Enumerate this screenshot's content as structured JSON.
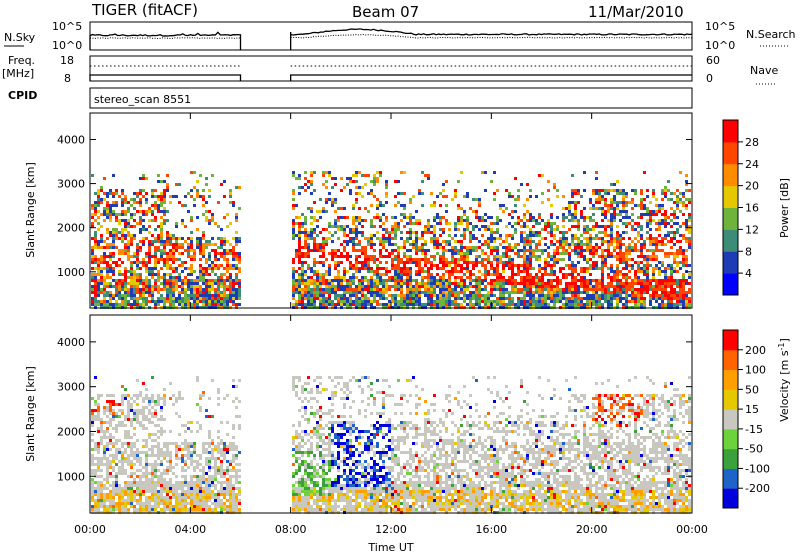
{
  "header": {
    "radar": "TIGER (fitACF)",
    "beam": "Beam 07",
    "date": "11/Mar/2010"
  },
  "panels": {
    "nsky_label": "N.Sky",
    "nsearch_label": "N.Search",
    "nsky_ticks": [
      "10^5",
      "10^0"
    ],
    "nsearch_ticks": [
      "10^5",
      "10^0"
    ],
    "freq_label": "Freq.",
    "freq_unit": "[MHz]",
    "freq_ticks": [
      "18",
      "8"
    ],
    "nave_label": "Nave",
    "nave_ticks": [
      "60",
      "0"
    ],
    "cpid_label": "CPID",
    "cpid_value": "stereo_scan 8551"
  },
  "chart_data": [
    {
      "type": "heatmap",
      "title": "",
      "ylabel": "Slant Range [km]",
      "xlabel": "",
      "y_ticks": [
        "4000",
        "3000",
        "2000",
        "1000"
      ],
      "ylim": [
        180,
        4600
      ],
      "colorbar_label": "Power [dB]",
      "colorbar_ticks": [
        "28",
        "24",
        "20",
        "16",
        "12",
        "8",
        "4"
      ],
      "colorbar_colors": [
        "#0000ff",
        "#1e3cb4",
        "#3c8c78",
        "#6eb43c",
        "#e6c800",
        "#ff8c00",
        "#ff4600",
        "#ff0000"
      ],
      "data_gap_hours": [
        6.0,
        8.0
      ]
    },
    {
      "type": "heatmap",
      "title": "",
      "ylabel": "Slant Range [km]",
      "xlabel": "Time UT",
      "x_ticks": [
        "00:00",
        "04:00",
        "08:00",
        "12:00",
        "16:00",
        "20:00",
        "00:00"
      ],
      "y_ticks": [
        "4000",
        "3000",
        "2000",
        "1000"
      ],
      "ylim": [
        180,
        4600
      ],
      "colorbar_label": "Velocity",
      "colorbar_unit": "[m s",
      "colorbar_unit_exp": "-1",
      "colorbar_unit_close": "]",
      "colorbar_ticks": [
        "200",
        "100",
        "50",
        "15",
        "-15",
        "-50",
        "-100",
        "-200"
      ],
      "colorbar_colors": [
        "#ff0000",
        "#ff6400",
        "#ffa000",
        "#e6c800",
        "#c8c8c0",
        "#6ed23c",
        "#3ca03c",
        "#1e64c8",
        "#0000dc"
      ],
      "data_gap_hours": [
        6.0,
        8.0
      ]
    }
  ],
  "colors": {
    "gap": "#ffffff",
    "ground": "#c8c8c0"
  }
}
